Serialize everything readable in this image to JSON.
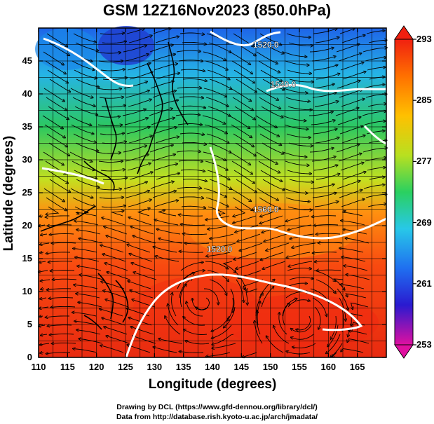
{
  "title": "GSM 12Z16Nov2023 (850.0hPa)",
  "xaxis": {
    "label": "Longitude (degrees)",
    "ticks": [
      "110",
      "115",
      "120",
      "125",
      "130",
      "135",
      "140",
      "145",
      "150",
      "155",
      "160",
      "165"
    ],
    "range": [
      110,
      170
    ]
  },
  "yaxis": {
    "label": "Latitude  (degrees)",
    "ticks": [
      "0",
      "5",
      "10",
      "15",
      "20",
      "25",
      "30",
      "35",
      "40",
      "45"
    ],
    "range": [
      0,
      50
    ]
  },
  "colorbar": {
    "ticks": [
      "293",
      "285",
      "277",
      "269",
      "261",
      "253"
    ],
    "range": [
      253,
      293
    ],
    "colors": [
      "#e0109a",
      "#2a1ad0",
      "#1f6ff0",
      "#28c8e8",
      "#2ad060",
      "#b8e020",
      "#ffc000",
      "#ff7000",
      "#f02010"
    ]
  },
  "contour_labels": [
    {
      "text": "1520.0",
      "lon": 147,
      "lat": 47
    },
    {
      "text": "1540.0",
      "lon": 150,
      "lat": 41
    },
    {
      "text": "1560.0",
      "lon": 147,
      "lat": 22
    },
    {
      "text": "1520.0",
      "lon": 139,
      "lat": 16
    }
  ],
  "credits": {
    "line1": "Drawing by DCL (https://www.gfd-dennou.org/library/dcl/)",
    "line2": "Data from http://database.rish.kyoto-u.ac.jp/arch/jmadata/"
  }
}
